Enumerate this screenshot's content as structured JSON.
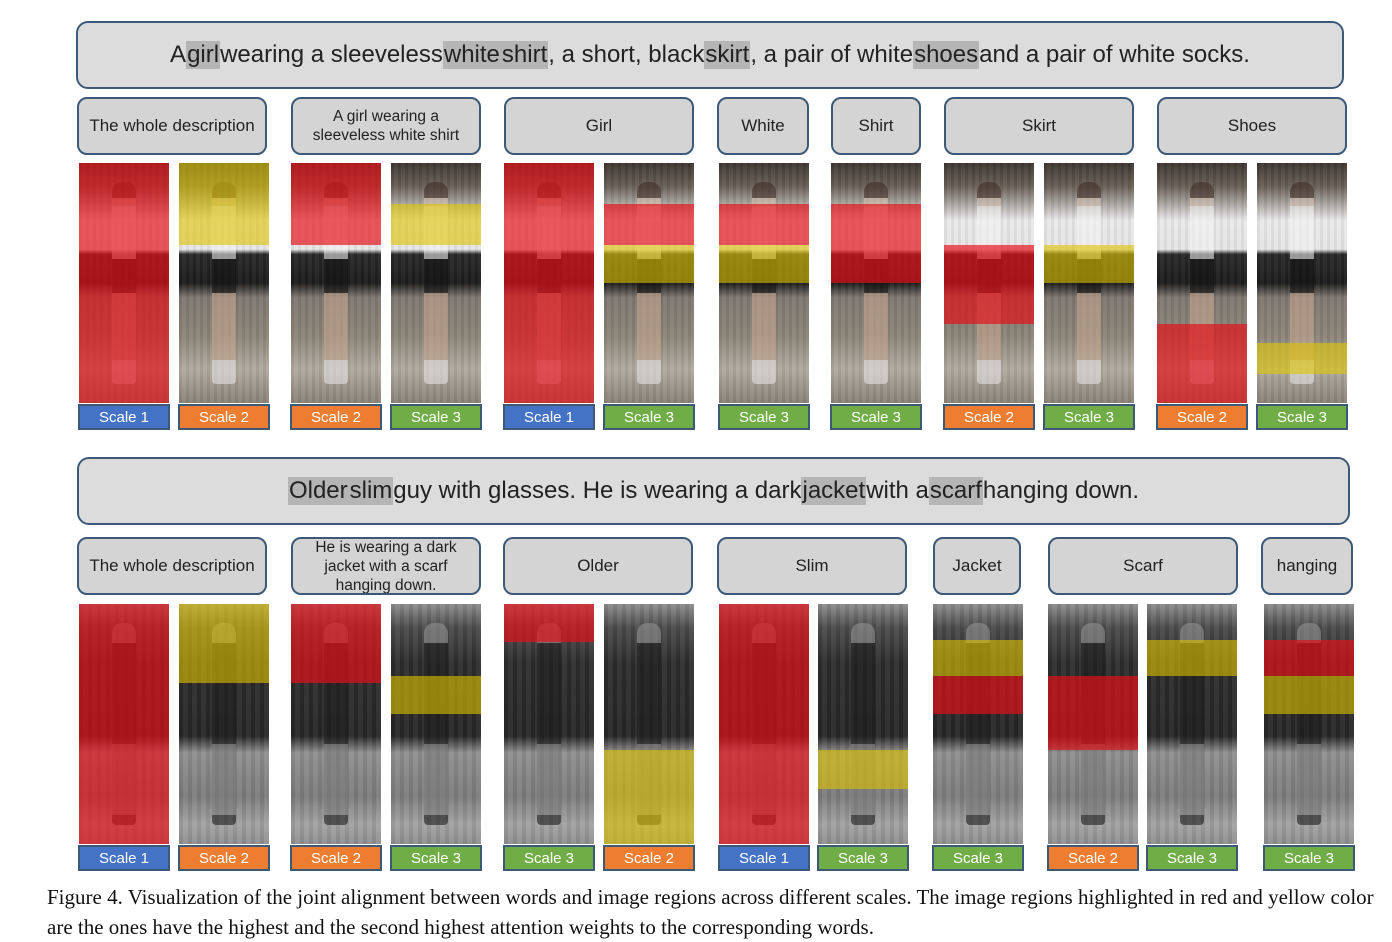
{
  "panels": [
    {
      "sentence_parts": [
        {
          "t": "A ",
          "h": false
        },
        {
          "t": "girl",
          "h": true
        },
        {
          "t": " wearing a sleeveless ",
          "h": false
        },
        {
          "t": "white",
          "h": true
        },
        {
          "t": " ",
          "h": false
        },
        {
          "t": "shirt",
          "h": true
        },
        {
          "t": ", a short, black ",
          "h": false
        },
        {
          "t": "skirt",
          "h": true
        },
        {
          "t": ", a pair of white ",
          "h": false
        },
        {
          "t": "shoes",
          "h": true
        },
        {
          "t": " and a pair of white socks.",
          "h": false
        }
      ],
      "image_style": "color",
      "labels": [
        {
          "text": "The whole description"
        },
        {
          "text": "A girl wearing a sleeveless white shirt"
        },
        {
          "text": "Girl"
        },
        {
          "text": "White"
        },
        {
          "text": "Shirt"
        },
        {
          "text": "Skirt"
        },
        {
          "text": "Shoes"
        }
      ],
      "tiles": [
        {
          "scale": "Scale 1",
          "level": 1,
          "red": [
            0,
            1
          ],
          "yellow": null
        },
        {
          "scale": "Scale 2",
          "level": 2,
          "red": null,
          "yellow": [
            0,
            0.34
          ]
        },
        {
          "scale": "Scale 2",
          "level": 2,
          "red": [
            0,
            0.34
          ],
          "yellow": null
        },
        {
          "scale": "Scale 3",
          "level": 3,
          "red": null,
          "yellow": [
            0.17,
            0.34
          ]
        },
        {
          "scale": "Scale 1",
          "level": 1,
          "red": [
            0,
            1
          ],
          "yellow": null
        },
        {
          "scale": "Scale 3",
          "level": 3,
          "red": [
            0.17,
            0.34
          ],
          "yellow": [
            0.34,
            0.5
          ]
        },
        {
          "scale": "Scale 3",
          "level": 3,
          "red": [
            0.17,
            0.34
          ],
          "yellow": [
            0.34,
            0.5
          ]
        },
        {
          "scale": "Scale 3",
          "level": 3,
          "red": [
            0.17,
            0.5
          ],
          "yellow": null
        },
        {
          "scale": "Scale 2",
          "level": 2,
          "red": [
            0.34,
            0.67
          ],
          "yellow": null
        },
        {
          "scale": "Scale 3",
          "level": 3,
          "red": null,
          "yellow": [
            0.34,
            0.5
          ]
        },
        {
          "scale": "Scale 2",
          "level": 2,
          "red": [
            0.67,
            1
          ],
          "yellow": null
        },
        {
          "scale": "Scale 3",
          "level": 3,
          "red": null,
          "yellow": [
            0.75,
            0.88
          ]
        }
      ]
    },
    {
      "sentence_parts": [
        {
          "t": "Older",
          "h": true
        },
        {
          "t": " ",
          "h": false
        },
        {
          "t": "slim",
          "h": true
        },
        {
          "t": " guy with glasses. He is wearing a dark ",
          "h": false
        },
        {
          "t": "jacket",
          "h": true
        },
        {
          "t": " with a ",
          "h": false
        },
        {
          "t": "scarf",
          "h": true
        },
        {
          "t": " hanging down.",
          "h": false
        }
      ],
      "image_style": "gray",
      "labels": [
        {
          "text": "The whole description"
        },
        {
          "text": "He is wearing a dark jacket with a scarf hanging down."
        },
        {
          "text": "Older"
        },
        {
          "text": "Slim"
        },
        {
          "text": "Jacket"
        },
        {
          "text": "Scarf"
        },
        {
          "text": "hanging"
        }
      ],
      "tiles": [
        {
          "scale": "Scale 1",
          "level": 1,
          "red": [
            0,
            1
          ],
          "yellow": null
        },
        {
          "scale": "Scale 2",
          "level": 2,
          "red": null,
          "yellow": [
            0,
            0.33
          ]
        },
        {
          "scale": "Scale 2",
          "level": 2,
          "red": [
            0,
            0.33
          ],
          "yellow": null
        },
        {
          "scale": "Scale 3",
          "level": 3,
          "red": null,
          "yellow": [
            0.3,
            0.46
          ]
        },
        {
          "scale": "Scale 3",
          "level": 3,
          "red": [
            0,
            0.16
          ],
          "yellow": null
        },
        {
          "scale": "Scale 2",
          "level": 2,
          "red": null,
          "yellow": [
            0.61,
            1
          ]
        },
        {
          "scale": "Scale 1",
          "level": 1,
          "red": [
            0,
            1
          ],
          "yellow": null
        },
        {
          "scale": "Scale 3",
          "level": 3,
          "red": null,
          "yellow": [
            0.61,
            0.77
          ]
        },
        {
          "scale": "Scale 3",
          "level": 3,
          "red": [
            0.3,
            0.46
          ],
          "yellow": [
            0.15,
            0.3
          ]
        },
        {
          "scale": "Scale 2",
          "level": 2,
          "red": [
            0.3,
            0.61
          ],
          "yellow": null
        },
        {
          "scale": "Scale 3",
          "level": 3,
          "red": null,
          "yellow": [
            0.15,
            0.3
          ]
        },
        {
          "scale": "Scale 3",
          "level": 3,
          "red": [
            0.15,
            0.3
          ],
          "yellow": [
            0.3,
            0.46
          ]
        }
      ]
    }
  ],
  "caption": "Figure 4. Visualization of the joint alignment between words and image regions across different scales. The image regions highlighted in red and yellow color are the ones have the highest and the second highest attention weights to the corresponding words."
}
